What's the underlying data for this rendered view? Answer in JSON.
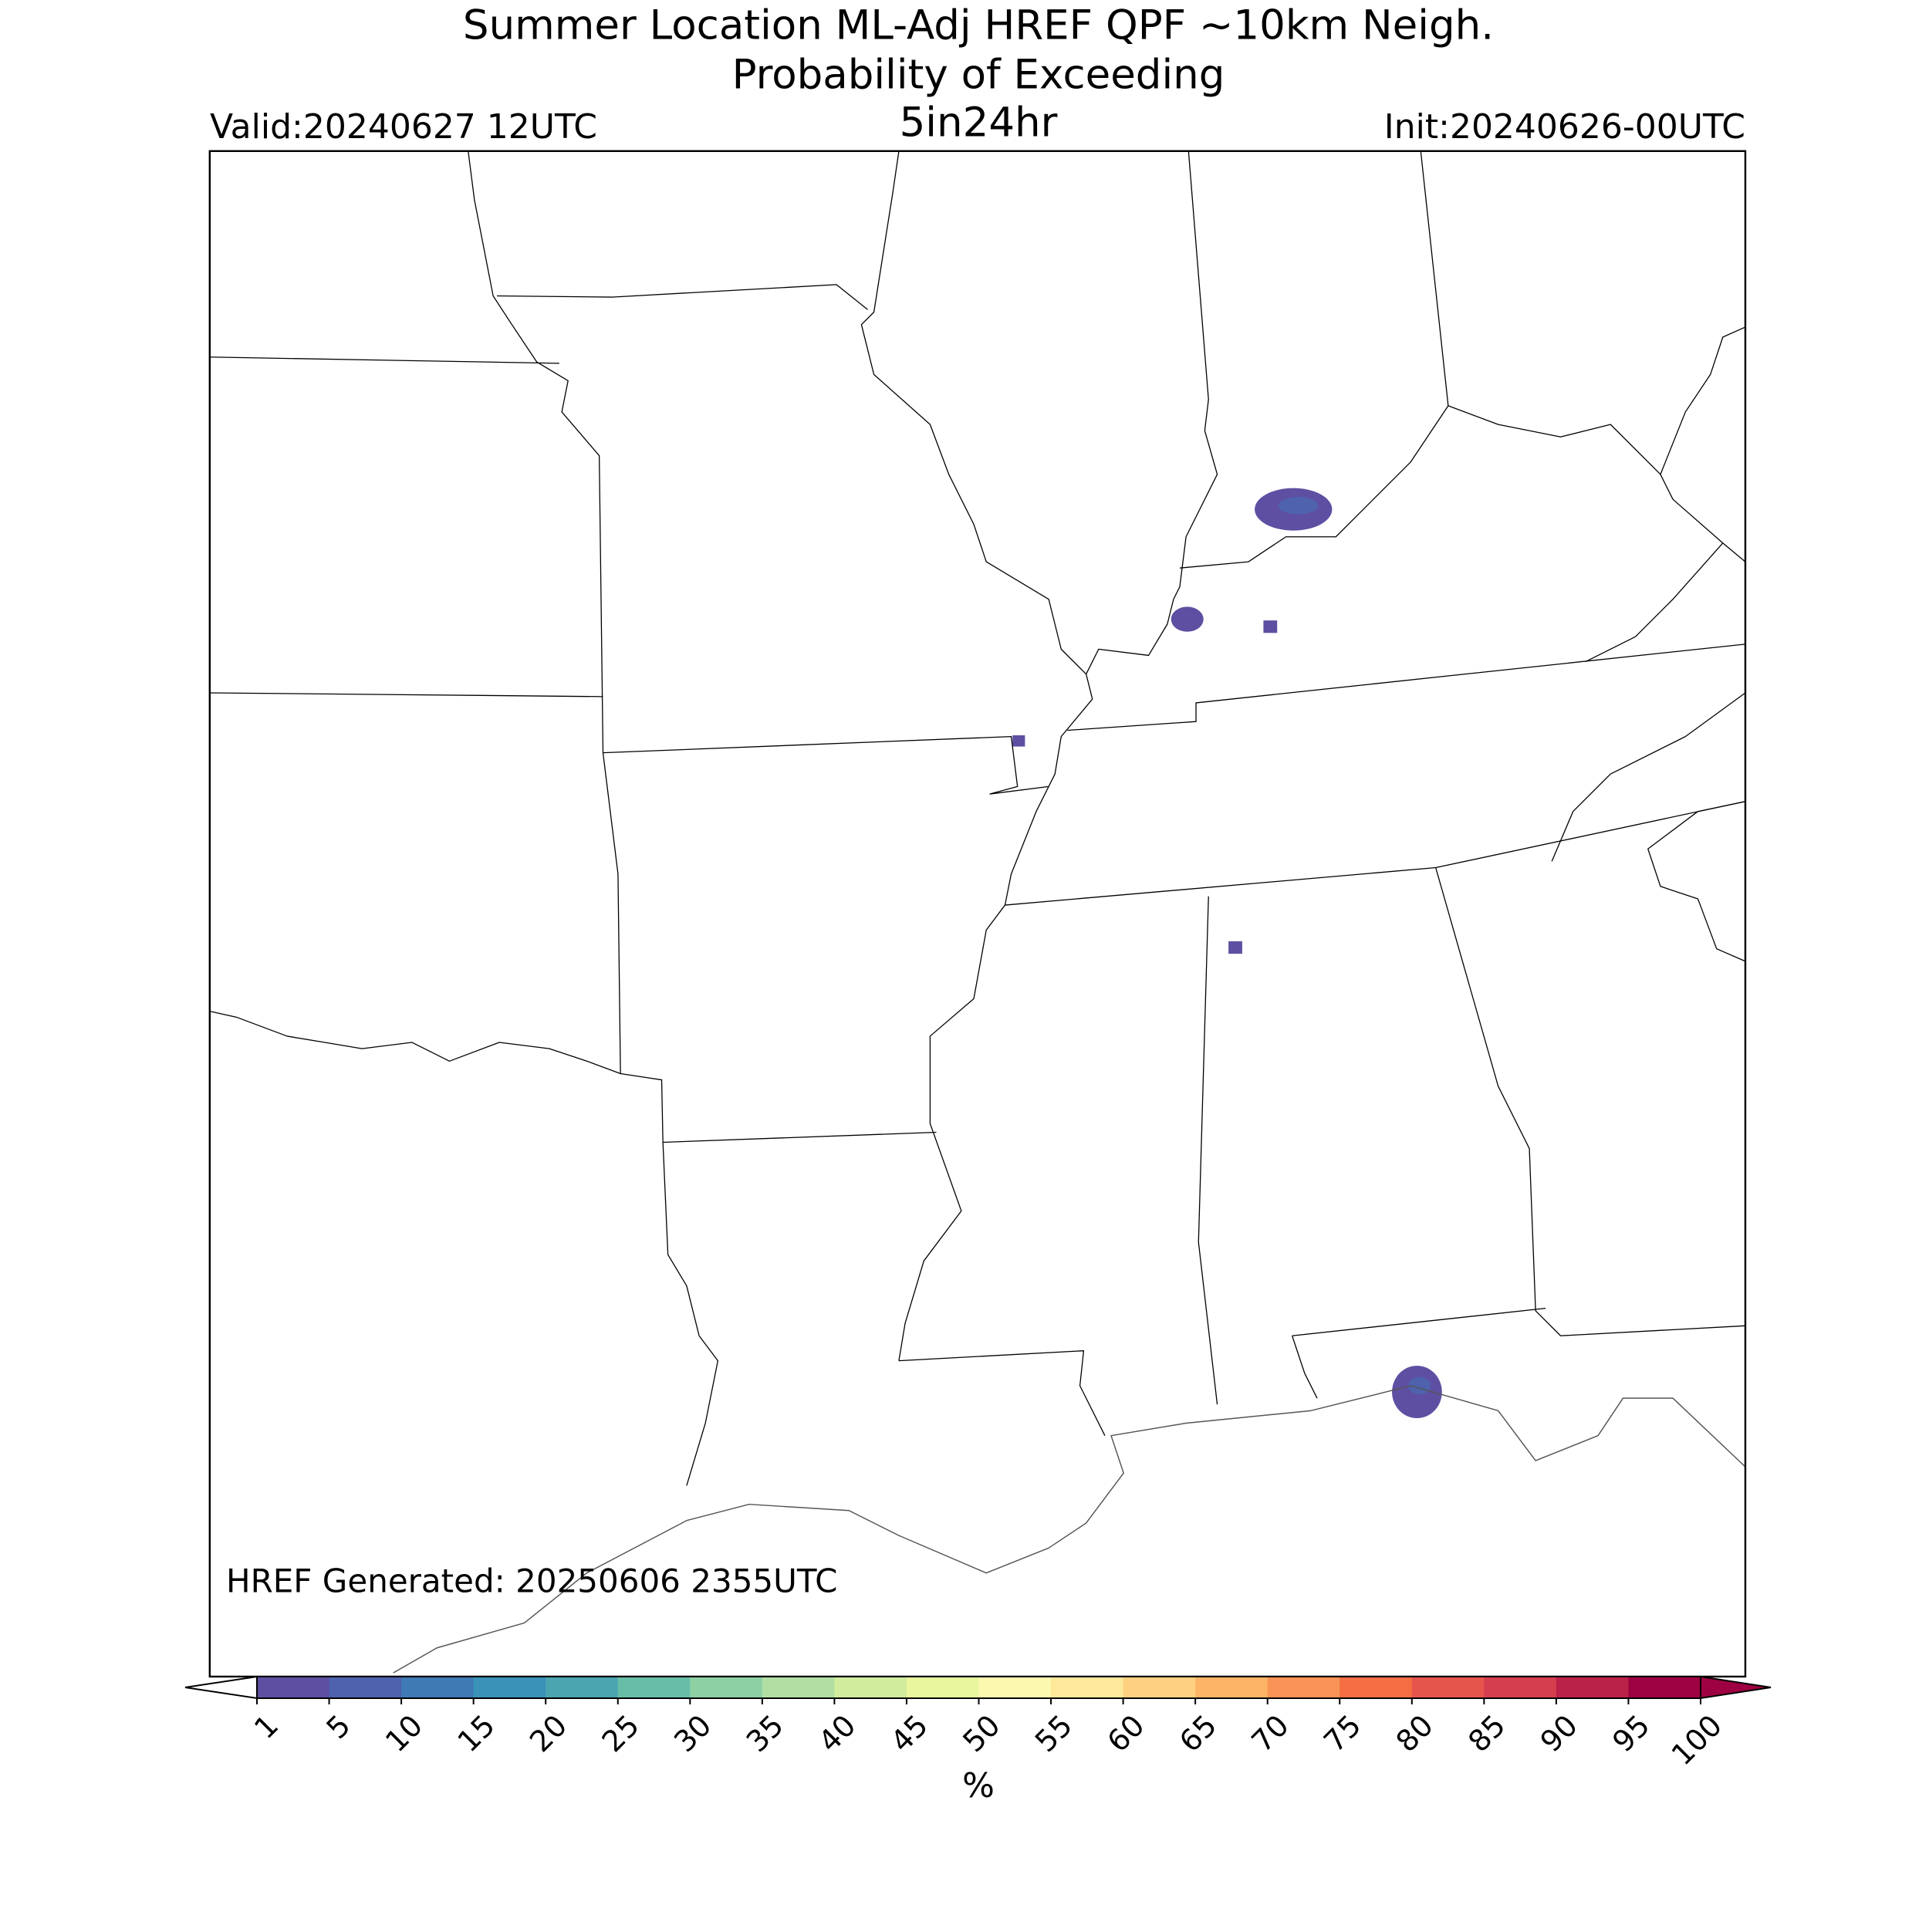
{
  "header": {
    "title_line1": "Summer Location ML-Adj HREF QPF ~10km Neigh.",
    "title_line2": "Probability of Exceeding",
    "threshold": "5in24hr",
    "valid": "Valid:20240627 12UTC",
    "init": "Init:20240626-00UTC"
  },
  "map": {
    "generated": "HREF Generated: 20250606 2355UTC"
  },
  "colorbar": {
    "label": "%",
    "levels": [
      1,
      5,
      10,
      15,
      20,
      25,
      30,
      35,
      40,
      45,
      50,
      55,
      60,
      65,
      70,
      75,
      80,
      85,
      90,
      95,
      100
    ],
    "colors": [
      "#5e4fa2",
      "#4e62ad",
      "#3f7ab4",
      "#3a92b8",
      "#4ba5b0",
      "#68bda8",
      "#8cd0a4",
      "#b1dfa3",
      "#d0ec9c",
      "#e9f69d",
      "#fbf8b0",
      "#fee89a",
      "#fdd180",
      "#fdb466",
      "#f99355",
      "#f46d43",
      "#e5554b",
      "#d53e4f",
      "#bb2249",
      "#9e0142"
    ],
    "under_color": "#ffffff",
    "over_color": "#9e0142"
  }
}
